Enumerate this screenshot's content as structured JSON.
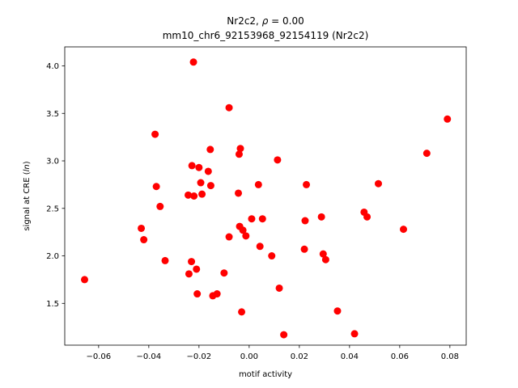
{
  "chart_data": {
    "type": "scatter",
    "title_line1_prefix": "Nr2c2, ",
    "title_line1_rho": "ρ",
    "title_line1_suffix": " = 0.00",
    "title_line2": "mm10_chr6_92153968_92154119 (Nr2c2)",
    "xlabel": "motif activity",
    "ylabel_prefix": "signal at CRE (",
    "ylabel_italic": "ln",
    "ylabel_suffix": ")",
    "xlim": [
      -0.0735,
      0.0865
    ],
    "ylim": [
      1.06,
      4.2
    ],
    "xticks": [
      -0.06,
      -0.04,
      -0.02,
      0.0,
      0.02,
      0.04,
      0.06,
      0.08
    ],
    "xtick_labels": [
      "−0.06",
      "−0.04",
      "−0.02",
      "0.00",
      "0.02",
      "0.04",
      "0.06",
      "0.08"
    ],
    "yticks": [
      1.5,
      2.0,
      2.5,
      3.0,
      3.5,
      4.0
    ],
    "ytick_labels": [
      "1.5",
      "2.0",
      "2.5",
      "3.0",
      "3.5",
      "4.0"
    ],
    "grid": false,
    "marker_color": "#ff0000",
    "points": [
      {
        "x": -0.0656,
        "y": 1.75
      },
      {
        "x": -0.043,
        "y": 2.29
      },
      {
        "x": -0.042,
        "y": 2.17
      },
      {
        "x": -0.0375,
        "y": 3.28
      },
      {
        "x": -0.037,
        "y": 2.73
      },
      {
        "x": -0.0355,
        "y": 2.52
      },
      {
        "x": -0.0335,
        "y": 1.95
      },
      {
        "x": -0.0243,
        "y": 2.64
      },
      {
        "x": -0.024,
        "y": 1.81
      },
      {
        "x": -0.023,
        "y": 1.94
      },
      {
        "x": -0.0228,
        "y": 2.95
      },
      {
        "x": -0.0222,
        "y": 4.04
      },
      {
        "x": -0.022,
        "y": 2.63
      },
      {
        "x": -0.021,
        "y": 1.86
      },
      {
        "x": -0.0207,
        "y": 1.6
      },
      {
        "x": -0.02,
        "y": 2.93
      },
      {
        "x": -0.0193,
        "y": 2.77
      },
      {
        "x": -0.0188,
        "y": 2.65
      },
      {
        "x": -0.0163,
        "y": 2.89
      },
      {
        "x": -0.0155,
        "y": 3.12
      },
      {
        "x": -0.0153,
        "y": 2.74
      },
      {
        "x": -0.0145,
        "y": 1.58
      },
      {
        "x": -0.0128,
        "y": 1.6
      },
      {
        "x": -0.01,
        "y": 1.82
      },
      {
        "x": -0.008,
        "y": 3.56
      },
      {
        "x": -0.008,
        "y": 2.2
      },
      {
        "x": -0.0043,
        "y": 2.66
      },
      {
        "x": -0.004,
        "y": 3.07
      },
      {
        "x": -0.0038,
        "y": 2.31
      },
      {
        "x": -0.0035,
        "y": 3.13
      },
      {
        "x": -0.003,
        "y": 1.41
      },
      {
        "x": -0.0025,
        "y": 2.27
      },
      {
        "x": -0.0013,
        "y": 2.21
      },
      {
        "x": 0.001,
        "y": 2.39
      },
      {
        "x": 0.0037,
        "y": 2.75
      },
      {
        "x": 0.0043,
        "y": 2.1
      },
      {
        "x": 0.0053,
        "y": 2.39
      },
      {
        "x": 0.009,
        "y": 2.0
      },
      {
        "x": 0.0113,
        "y": 3.01
      },
      {
        "x": 0.012,
        "y": 1.66
      },
      {
        "x": 0.0138,
        "y": 1.17
      },
      {
        "x": 0.022,
        "y": 2.07
      },
      {
        "x": 0.0223,
        "y": 2.37
      },
      {
        "x": 0.0228,
        "y": 2.75
      },
      {
        "x": 0.0288,
        "y": 2.41
      },
      {
        "x": 0.0295,
        "y": 2.02
      },
      {
        "x": 0.0305,
        "y": 1.96
      },
      {
        "x": 0.0352,
        "y": 1.42
      },
      {
        "x": 0.042,
        "y": 1.18
      },
      {
        "x": 0.0458,
        "y": 2.46
      },
      {
        "x": 0.047,
        "y": 2.41
      },
      {
        "x": 0.0515,
        "y": 2.76
      },
      {
        "x": 0.0615,
        "y": 2.28
      },
      {
        "x": 0.0708,
        "y": 3.08
      },
      {
        "x": 0.079,
        "y": 3.44
      }
    ]
  }
}
